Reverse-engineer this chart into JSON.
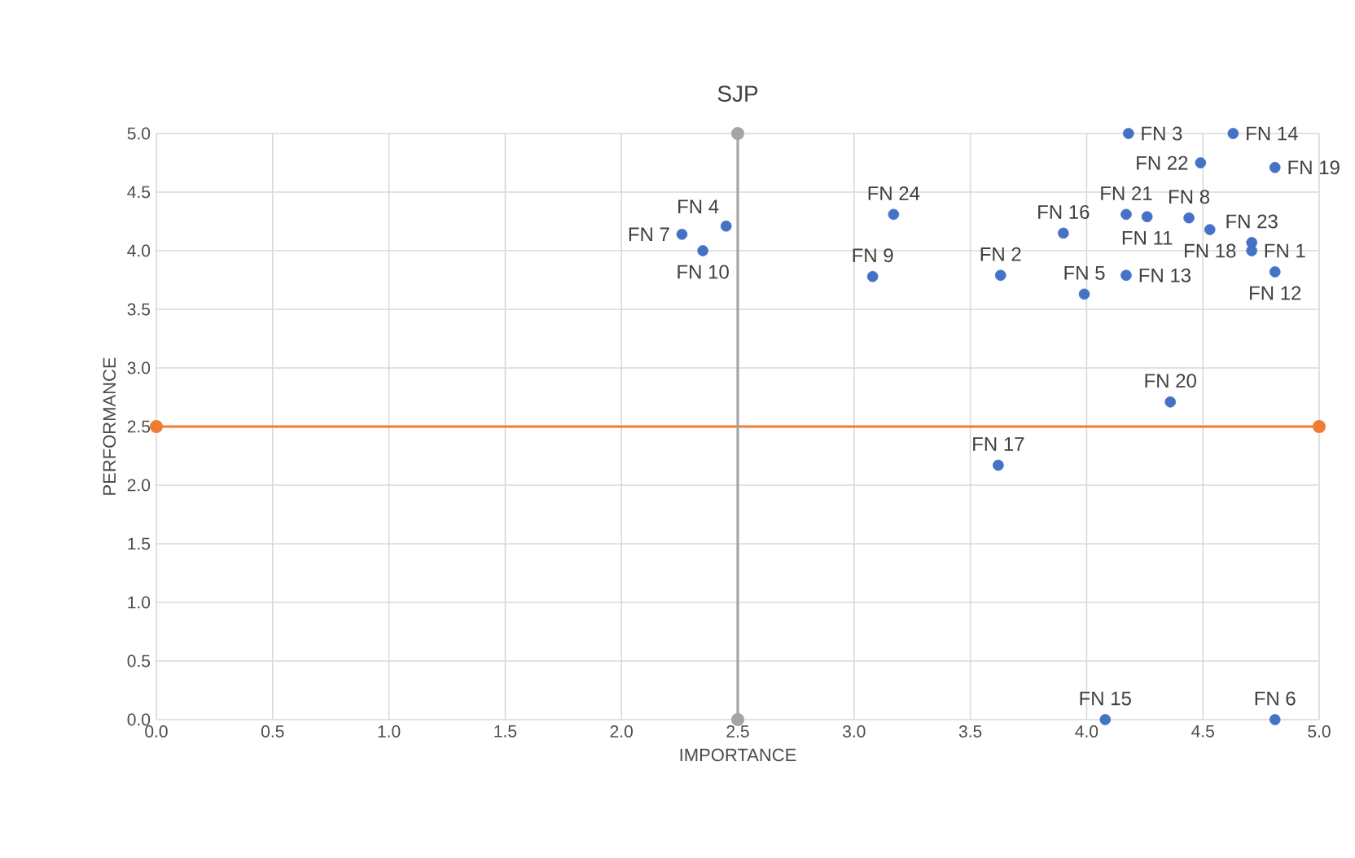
{
  "chart_data": {
    "type": "scatter",
    "title": "SJP",
    "xlabel": "IMPORTANCE",
    "ylabel": "PERFORMANCE",
    "xlim": [
      0,
      5
    ],
    "ylim": [
      0,
      5
    ],
    "xticks": [
      {
        "value": 0,
        "label": "0.0"
      },
      {
        "value": 0.5,
        "label": "0.5"
      },
      {
        "value": 1,
        "label": "1.0"
      },
      {
        "value": 1.5,
        "label": "1.5"
      },
      {
        "value": 2,
        "label": "2.0"
      },
      {
        "value": 2.5,
        "label": "2.5"
      },
      {
        "value": 3,
        "label": "3.0"
      },
      {
        "value": 3.5,
        "label": "3.5"
      },
      {
        "value": 4,
        "label": "4.0"
      },
      {
        "value": 4.5,
        "label": "4.5"
      },
      {
        "value": 5,
        "label": "5.0"
      }
    ],
    "yticks": [
      {
        "value": 0,
        "label": "0.0"
      },
      {
        "value": 0.5,
        "label": "0.5"
      },
      {
        "value": 1,
        "label": "1.0"
      },
      {
        "value": 1.5,
        "label": "1.5"
      },
      {
        "value": 2,
        "label": "2.0"
      },
      {
        "value": 2.5,
        "label": "2.5"
      },
      {
        "value": 3,
        "label": "3.0"
      },
      {
        "value": 3.5,
        "label": "3.5"
      },
      {
        "value": 4,
        "label": "4.0"
      },
      {
        "value": 4.5,
        "label": "4.5"
      },
      {
        "value": 5,
        "label": "5.0"
      }
    ],
    "grid": true,
    "marker": "circle",
    "series": [
      {
        "color": "#4472c4",
        "x": [
          4.71,
          3.63,
          4.18,
          2.45,
          3.99,
          4.81,
          2.26,
          4.44,
          3.08,
          2.35,
          4.26,
          4.81,
          4.17,
          4.63,
          4.08,
          3.9,
          3.62,
          4.53,
          4.81,
          4.36,
          4.17,
          4.49,
          4.71,
          3.17
        ],
        "values": [
          4.0,
          3.79,
          5.0,
          4.21,
          3.63,
          0,
          4.14,
          4.28,
          3.78,
          4.0,
          4.29,
          3.82,
          3.79,
          5.0,
          0,
          4.15,
          2.17,
          4.18,
          4.71,
          2.71,
          4.31,
          4.75,
          4.07,
          4.31
        ]
      },
      {
        "type": "line",
        "color": "#ed7d31",
        "x": [
          0,
          5
        ],
        "values": [
          2.5,
          2.5
        ]
      },
      {
        "type": "line",
        "color": "#a5a5a5",
        "x": [
          2.5,
          2.5
        ],
        "values": [
          0,
          5
        ]
      }
    ],
    "annotations": [
      {
        "text": "FN 1",
        "x": 4.71,
        "y": 4.0
      },
      {
        "text": "FN 2",
        "x": 3.63,
        "y": 3.79
      },
      {
        "text": "FN 3",
        "x": 4.18,
        "y": 5.0
      },
      {
        "text": "FN 4",
        "x": 2.45,
        "y": 4.21
      },
      {
        "text": "FN 5",
        "x": 3.99,
        "y": 3.63
      },
      {
        "text": "FN 6",
        "x": 4.81,
        "y": 0
      },
      {
        "text": "FN 7",
        "x": 2.26,
        "y": 4.14
      },
      {
        "text": "FN 8",
        "x": 4.44,
        "y": 4.28
      },
      {
        "text": "FN 9",
        "x": 3.08,
        "y": 3.78
      },
      {
        "text": "FN 10",
        "x": 2.35,
        "y": 4.0
      },
      {
        "text": "FN 11",
        "x": 4.26,
        "y": 4.29
      },
      {
        "text": "FN 12",
        "x": 4.81,
        "y": 3.82
      },
      {
        "text": "FN 13",
        "x": 4.17,
        "y": 3.79
      },
      {
        "text": "FN 14",
        "x": 4.63,
        "y": 5.0
      },
      {
        "text": "FN 15",
        "x": 4.08,
        "y": 0
      },
      {
        "text": "FN 16",
        "x": 3.9,
        "y": 4.15
      },
      {
        "text": "FN 17",
        "x": 3.62,
        "y": 2.17
      },
      {
        "text": "FN 18",
        "x": 4.53,
        "y": 4.18
      },
      {
        "text": "FN 19",
        "x": 4.81,
        "y": 4.71
      },
      {
        "text": "FN 20",
        "x": 4.36,
        "y": 2.71
      },
      {
        "text": "FN 21",
        "x": 4.17,
        "y": 4.31
      },
      {
        "text": "FN 22",
        "x": 4.49,
        "y": 4.75
      },
      {
        "text": "FN 23",
        "x": 4.71,
        "y": 4.07
      },
      {
        "text": "FN 24",
        "x": 3.17,
        "y": 4.31
      }
    ]
  }
}
